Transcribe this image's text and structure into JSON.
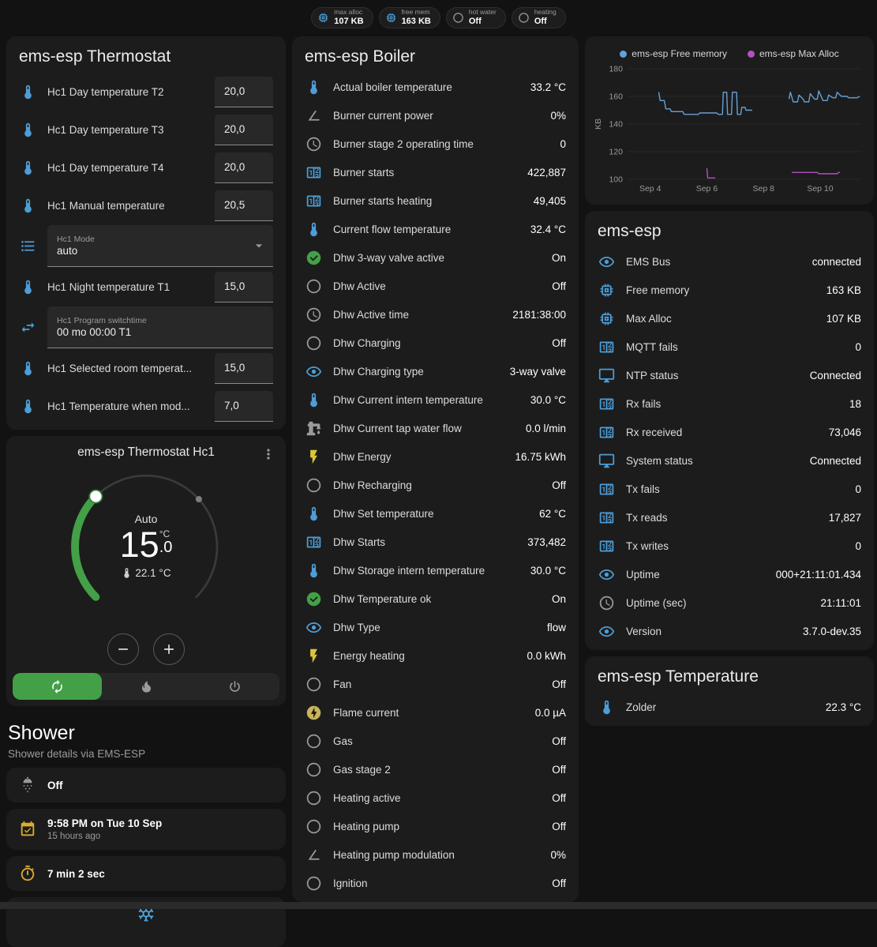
{
  "colors": {
    "background": "#121212",
    "card": "#1c1c1c",
    "accent_green": "#43a047",
    "icon_blue": "#4d9dd6",
    "icon_gray": "#9b9b9b",
    "icon_amber": "#deab2f",
    "icon_yellow": "#d8c63a",
    "icon_snow": "#4aa3e0",
    "legend_blue": "#64a1d8",
    "legend_purple": "#b052c0"
  },
  "header": {
    "chips": [
      {
        "label": "max alloc",
        "value": "107 KB",
        "icon": "memory",
        "icon_color": "#4d9dd6"
      },
      {
        "label": "free mem",
        "value": "163 KB",
        "icon": "memory",
        "icon_color": "#4d9dd6"
      },
      {
        "label": "hot water",
        "value": "Off",
        "icon": "circle",
        "icon_color": "#9b9b9b"
      },
      {
        "label": "heating",
        "value": "Off",
        "icon": "circle",
        "icon_color": "#9b9b9b"
      }
    ]
  },
  "thermostat": {
    "title": "ems-esp Thermostat",
    "rows": [
      {
        "type": "number",
        "icon": "thermometer",
        "icon_color": "#4d9dd6",
        "label": "Hc1 Day temperature T2",
        "value": "20,0"
      },
      {
        "type": "number",
        "icon": "thermometer",
        "icon_color": "#4d9dd6",
        "label": "Hc1 Day temperature T3",
        "value": "20,0"
      },
      {
        "type": "number",
        "icon": "thermometer",
        "icon_color": "#4d9dd6",
        "label": "Hc1 Day temperature T4",
        "value": "20,0"
      },
      {
        "type": "number",
        "icon": "thermometer",
        "icon_color": "#4d9dd6",
        "label": "Hc1 Manual temperature",
        "value": "20,5"
      },
      {
        "type": "select",
        "icon": "list",
        "icon_color": "#4d9dd6",
        "label": "Hc1 Mode",
        "value": "auto"
      },
      {
        "type": "number",
        "icon": "thermometer",
        "icon_color": "#4d9dd6",
        "label": "Hc1 Night temperature T1",
        "value": "15,0"
      },
      {
        "type": "text",
        "icon": "swap",
        "icon_color": "#4d9dd6",
        "label": "Hc1 Program switchtime",
        "value": "00 mo 00:00 T1"
      },
      {
        "type": "number",
        "icon": "thermometer",
        "icon_color": "#4d9dd6",
        "label": "Hc1 Selected room temperat...",
        "value": "15,0"
      },
      {
        "type": "number",
        "icon": "thermometer",
        "icon_color": "#4d9dd6",
        "label": "Hc1 Temperature when mod...",
        "value": "7,0"
      }
    ]
  },
  "dial": {
    "title": "ems-esp Thermostat Hc1",
    "mode": "Auto",
    "temp_int": "15",
    "temp_dec": ".0",
    "temp_unit": "°C",
    "current": "22.1 °C"
  },
  "shower": {
    "title": "Shower",
    "subtitle": "Shower details via EMS-ESP",
    "rows": [
      {
        "icon": "shower",
        "icon_color": "#9b9b9b",
        "primary": "Off"
      },
      {
        "icon": "calendar",
        "icon_color": "#deab2f",
        "primary": "9:58 PM on Tue 10 Sep",
        "secondary": "15 hours ago"
      },
      {
        "icon": "timer",
        "icon_color": "#deab2f",
        "primary": "7 min 2 sec"
      }
    ]
  },
  "boiler": {
    "title": "ems-esp Boiler",
    "rows": [
      {
        "icon": "thermometer",
        "icon_color": "#4d9dd6",
        "label": "Actual boiler temperature",
        "value": "33.2 °C"
      },
      {
        "icon": "angle",
        "icon_color": "#9b9b9b",
        "label": "Burner current power",
        "value": "0%"
      },
      {
        "icon": "clock",
        "icon_color": "#9b9b9b",
        "label": "Burner stage 2 operating time",
        "value": "0"
      },
      {
        "icon": "counter",
        "icon_color": "#4d9dd6",
        "label": "Burner starts",
        "value": "422,887"
      },
      {
        "icon": "counter",
        "icon_color": "#4d9dd6",
        "label": "Burner starts heating",
        "value": "49,405"
      },
      {
        "icon": "thermometer",
        "icon_color": "#4d9dd6",
        "label": "Current flow temperature",
        "value": "32.4 °C"
      },
      {
        "icon": "check-circle",
        "icon_color": "#43a047",
        "label": "Dhw 3-way valve active",
        "value": "On"
      },
      {
        "icon": "circle",
        "icon_color": "#9b9b9b",
        "label": "Dhw Active",
        "value": "Off"
      },
      {
        "icon": "clock",
        "icon_color": "#9b9b9b",
        "label": "Dhw Active time",
        "value": "2181:38:00"
      },
      {
        "icon": "circle",
        "icon_color": "#9b9b9b",
        "label": "Dhw Charging",
        "value": "Off"
      },
      {
        "icon": "eye",
        "icon_color": "#4d9dd6",
        "label": "Dhw Charging type",
        "value": "3-way valve"
      },
      {
        "icon": "thermometer",
        "icon_color": "#4d9dd6",
        "label": "Dhw Current intern temperature",
        "value": "30.0 °C"
      },
      {
        "icon": "water-pump",
        "icon_color": "#9b9b9b",
        "label": "Dhw Current tap water flow",
        "value": "0.0 l/min"
      },
      {
        "icon": "bolt",
        "icon_color": "#d8c63a",
        "label": "Dhw Energy",
        "value": "16.75 kWh"
      },
      {
        "icon": "circle",
        "icon_color": "#9b9b9b",
        "label": "Dhw Recharging",
        "value": "Off"
      },
      {
        "icon": "thermometer",
        "icon_color": "#4d9dd6",
        "label": "Dhw Set temperature",
        "value": "62 °C"
      },
      {
        "icon": "counter",
        "icon_color": "#4d9dd6",
        "label": "Dhw Starts",
        "value": "373,482"
      },
      {
        "icon": "thermometer",
        "icon_color": "#4d9dd6",
        "label": "Dhw Storage intern temperature",
        "value": "30.0 °C"
      },
      {
        "icon": "check-circle",
        "icon_color": "#43a047",
        "label": "Dhw Temperature ok",
        "value": "On"
      },
      {
        "icon": "eye",
        "icon_color": "#4d9dd6",
        "label": "Dhw Type",
        "value": "flow"
      },
      {
        "icon": "bolt",
        "icon_color": "#d8c63a",
        "label": "Energy heating",
        "value": "0.0 kWh"
      },
      {
        "icon": "circle",
        "icon_color": "#9b9b9b",
        "label": "Fan",
        "value": "Off"
      },
      {
        "icon": "flash-circle",
        "icon_color": "#c9b458",
        "label": "Flame current",
        "value": "0.0 µA"
      },
      {
        "icon": "circle",
        "icon_color": "#9b9b9b",
        "label": "Gas",
        "value": "Off"
      },
      {
        "icon": "circle",
        "icon_color": "#9b9b9b",
        "label": "Gas stage 2",
        "value": "Off"
      },
      {
        "icon": "circle",
        "icon_color": "#9b9b9b",
        "label": "Heating active",
        "value": "Off"
      },
      {
        "icon": "circle",
        "icon_color": "#9b9b9b",
        "label": "Heating pump",
        "value": "Off"
      },
      {
        "icon": "angle",
        "icon_color": "#9b9b9b",
        "label": "Heating pump modulation",
        "value": "0%"
      },
      {
        "icon": "circle",
        "icon_color": "#9b9b9b",
        "label": "Ignition",
        "value": "Off"
      }
    ]
  },
  "emsesp": {
    "title": "ems-esp",
    "rows": [
      {
        "icon": "eye",
        "icon_color": "#4d9dd6",
        "label": "EMS Bus",
        "value": "connected"
      },
      {
        "icon": "memory",
        "icon_color": "#4d9dd6",
        "label": "Free memory",
        "value": "163 KB"
      },
      {
        "icon": "memory",
        "icon_color": "#4d9dd6",
        "label": "Max Alloc",
        "value": "107 KB"
      },
      {
        "icon": "counter",
        "icon_color": "#4d9dd6",
        "label": "MQTT fails",
        "value": "0"
      },
      {
        "icon": "monitor",
        "icon_color": "#4d9dd6",
        "label": "NTP status",
        "value": "Connected"
      },
      {
        "icon": "counter",
        "icon_color": "#4d9dd6",
        "label": "Rx fails",
        "value": "18"
      },
      {
        "icon": "counter",
        "icon_color": "#4d9dd6",
        "label": "Rx received",
        "value": "73,046"
      },
      {
        "icon": "monitor",
        "icon_color": "#4d9dd6",
        "label": "System status",
        "value": "Connected"
      },
      {
        "icon": "counter",
        "icon_color": "#4d9dd6",
        "label": "Tx fails",
        "value": "0"
      },
      {
        "icon": "counter",
        "icon_color": "#4d9dd6",
        "label": "Tx reads",
        "value": "17,827"
      },
      {
        "icon": "counter",
        "icon_color": "#4d9dd6",
        "label": "Tx writes",
        "value": "0"
      },
      {
        "icon": "eye",
        "icon_color": "#4d9dd6",
        "label": "Uptime",
        "value": "000+21:11:01.434"
      },
      {
        "icon": "clock",
        "icon_color": "#9b9b9b",
        "label": "Uptime (sec)",
        "value": "21:11:01"
      },
      {
        "icon": "eye",
        "icon_color": "#4d9dd6",
        "label": "Version",
        "value": "3.7.0-dev.35"
      }
    ]
  },
  "temperature": {
    "title": "ems-esp Temperature",
    "rows": [
      {
        "icon": "thermometer",
        "icon_color": "#4d9dd6",
        "label": "Zolder",
        "value": "22.3 °C"
      }
    ]
  },
  "chart_data": {
    "type": "line",
    "title": "",
    "xlabel": "",
    "ylabel": "KB",
    "ylim": [
      100,
      180
    ],
    "yticks": [
      100,
      120,
      140,
      160,
      180
    ],
    "xlim": [
      3.2,
      11.45
    ],
    "xticks": [
      {
        "x": 4,
        "label": "Sep 4"
      },
      {
        "x": 6,
        "label": "Sep 6"
      },
      {
        "x": 8,
        "label": "Sep 8"
      },
      {
        "x": 10,
        "label": "Sep 10"
      }
    ],
    "grid": false,
    "legend_position": "top",
    "series": [
      {
        "name": "ems-esp Free memory",
        "color": "#64a1d8",
        "segments": [
          [
            [
              4.3,
              163
            ],
            [
              4.35,
              157
            ],
            [
              4.5,
              157
            ],
            [
              4.55,
              151
            ],
            [
              4.7,
              151
            ],
            [
              4.75,
              149
            ],
            [
              5.15,
              149
            ],
            [
              5.2,
              147
            ],
            [
              5.7,
              147
            ],
            [
              5.75,
              148
            ],
            [
              6.35,
              148
            ],
            [
              6.4,
              147
            ],
            [
              6.55,
              147
            ],
            [
              6.58,
              163
            ],
            [
              6.7,
              163
            ],
            [
              6.73,
              147
            ],
            [
              6.87,
              147
            ],
            [
              6.9,
              163
            ],
            [
              7.05,
              163
            ],
            [
              7.08,
              147
            ],
            [
              7.2,
              147
            ],
            [
              7.23,
              152
            ],
            [
              7.35,
              152
            ],
            [
              7.38,
              150
            ],
            [
              7.6,
              150
            ]
          ],
          [
            [
              8.9,
              158
            ],
            [
              8.95,
              163
            ],
            [
              9.05,
              156
            ],
            [
              9.2,
              156
            ],
            [
              9.25,
              161
            ],
            [
              9.4,
              158
            ],
            [
              9.45,
              156
            ],
            [
              9.6,
              156
            ],
            [
              9.65,
              162
            ],
            [
              9.8,
              158
            ],
            [
              9.9,
              158
            ],
            [
              9.95,
              164
            ],
            [
              10.1,
              157
            ],
            [
              10.25,
              157
            ],
            [
              10.3,
              161
            ],
            [
              10.45,
              159
            ],
            [
              10.55,
              159
            ],
            [
              10.6,
              163
            ],
            [
              10.75,
              160
            ],
            [
              10.95,
              160
            ],
            [
              11.0,
              159
            ],
            [
              11.3,
              159
            ],
            [
              11.4,
              160
            ]
          ]
        ]
      },
      {
        "name": "ems-esp Max Alloc",
        "color": "#b052c0",
        "segments": [
          [
            [
              6.0,
              108
            ],
            [
              6.03,
              101
            ],
            [
              6.3,
              101
            ]
          ],
          [
            [
              9.0,
              105
            ],
            [
              9.9,
              105
            ],
            [
              9.95,
              104
            ],
            [
              10.6,
              104
            ],
            [
              10.65,
              105
            ],
            [
              10.7,
              105
            ]
          ]
        ]
      }
    ]
  }
}
